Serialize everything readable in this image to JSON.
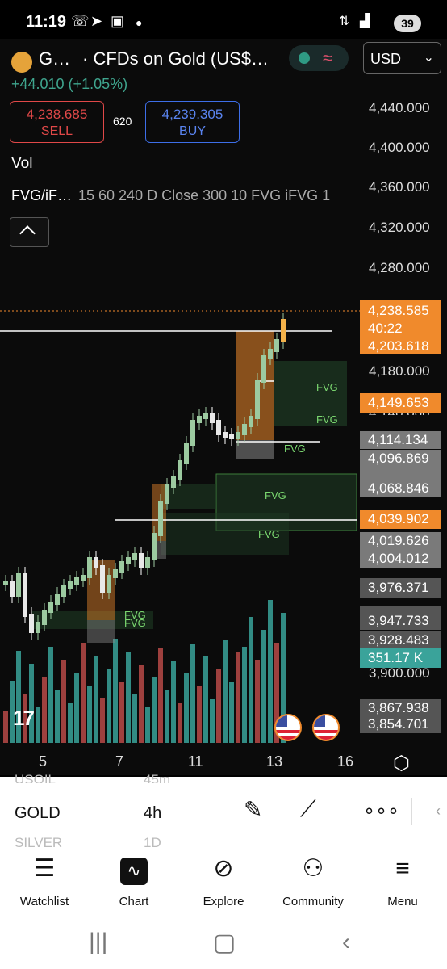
{
  "status_bar": {
    "time": "11:19",
    "icons": [
      "whatsapp-icon",
      "telegram-icon",
      "screen-icon",
      "dot-icon"
    ],
    "battery": "39"
  },
  "header": {
    "symbol_short": "G…",
    "symbol_description": "· CFDs on Gold (US$…",
    "currency": "USD",
    "change": "+44.010 (+1.05%)"
  },
  "trade": {
    "sell_price": "4,238.685",
    "sell_label": "SELL",
    "spread": "620",
    "buy_price": "4,239.305",
    "buy_label": "BUY"
  },
  "indicators": {
    "vol": "Vol",
    "fvg_name": "FVG/iF…",
    "fvg_params": "15 60 240 D Close 300 10 FVG iFVG 1"
  },
  "price_axis": {
    "labels": [
      "4,440.000",
      "4,400.000",
      "4,360.000",
      "4,320.000",
      "4,280.000",
      "4,180.000",
      "4,140.000",
      "3,900.000"
    ],
    "tags": {
      "last": "4,238.585",
      "countdown": "40:22",
      "t2": "4,203.618",
      "t3": "4,149.653",
      "t4": "4,114.134",
      "t5": "4,096.869",
      "t6": "4,068.846",
      "t7": "4,039.902",
      "t8": "4,019.626",
      "t9": "4,004.012",
      "t10": "3,976.371",
      "t11": "3,947.733",
      "t12": "3,928.483",
      "vol": "351.17 K",
      "t13": "3,867.938",
      "t14": "3,854.701"
    }
  },
  "fvg_labels": [
    "FVG",
    "FVG",
    "FVG",
    "FVG",
    "FVG",
    "FVG",
    "FVG"
  ],
  "time_axis": [
    "5",
    "7",
    "11",
    "13",
    "16"
  ],
  "toolbar": {
    "ghost_symbol_above": "USOIL",
    "ghost_interval_above": "45m",
    "symbol": "GOLD",
    "interval": "4h",
    "ghost_symbol_below": "SILVER",
    "ghost_interval_below": "1D"
  },
  "nav": {
    "watchlist": "Watchlist",
    "chart": "Chart",
    "explore": "Explore",
    "community": "Community",
    "menu": "Menu"
  },
  "colors": {
    "up": "#3aa39a",
    "down": "#b84a48",
    "accent": "#f08a2c",
    "fvg": "#7bd870"
  }
}
